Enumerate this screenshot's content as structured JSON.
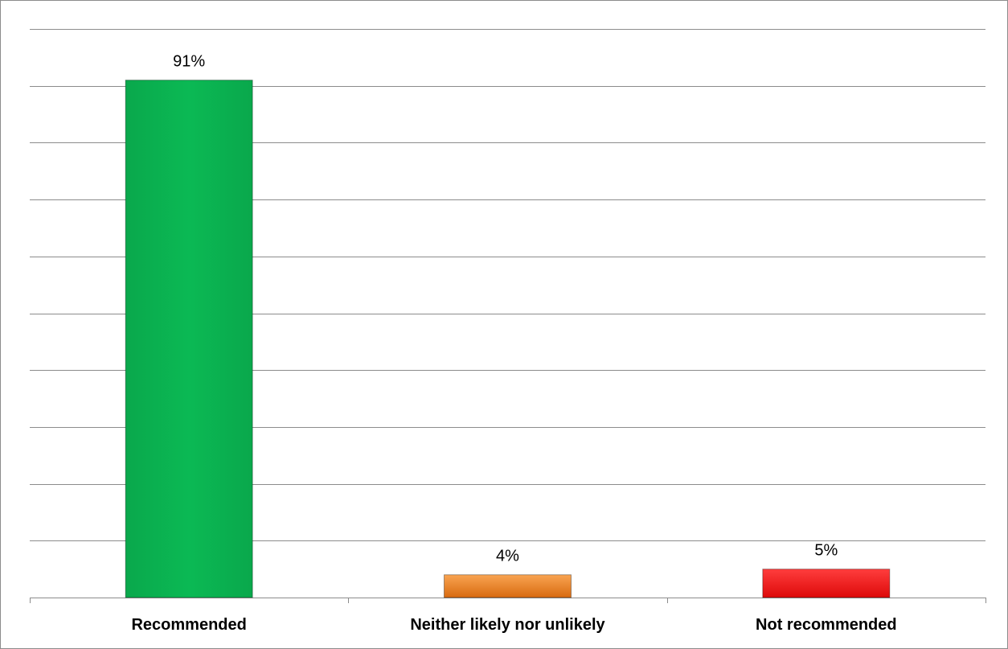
{
  "chart_data": {
    "type": "bar",
    "categories": [
      "Recommended",
      "Neither likely nor unlikely",
      "Not recommended"
    ],
    "values": [
      91,
      4,
      5
    ],
    "data_labels": [
      "91%",
      "4%",
      "5%"
    ],
    "bar_colors": [
      "#0bb954",
      "#e8761a",
      "#f01414"
    ],
    "ylim": [
      0,
      100
    ],
    "gridlines": true,
    "legend": "none",
    "title": "",
    "xlabel": "",
    "ylabel": ""
  },
  "colors": {
    "gridline": "#8c8c8c",
    "axis": "#8c8c8c",
    "frame_border": "#8c8c8c"
  }
}
